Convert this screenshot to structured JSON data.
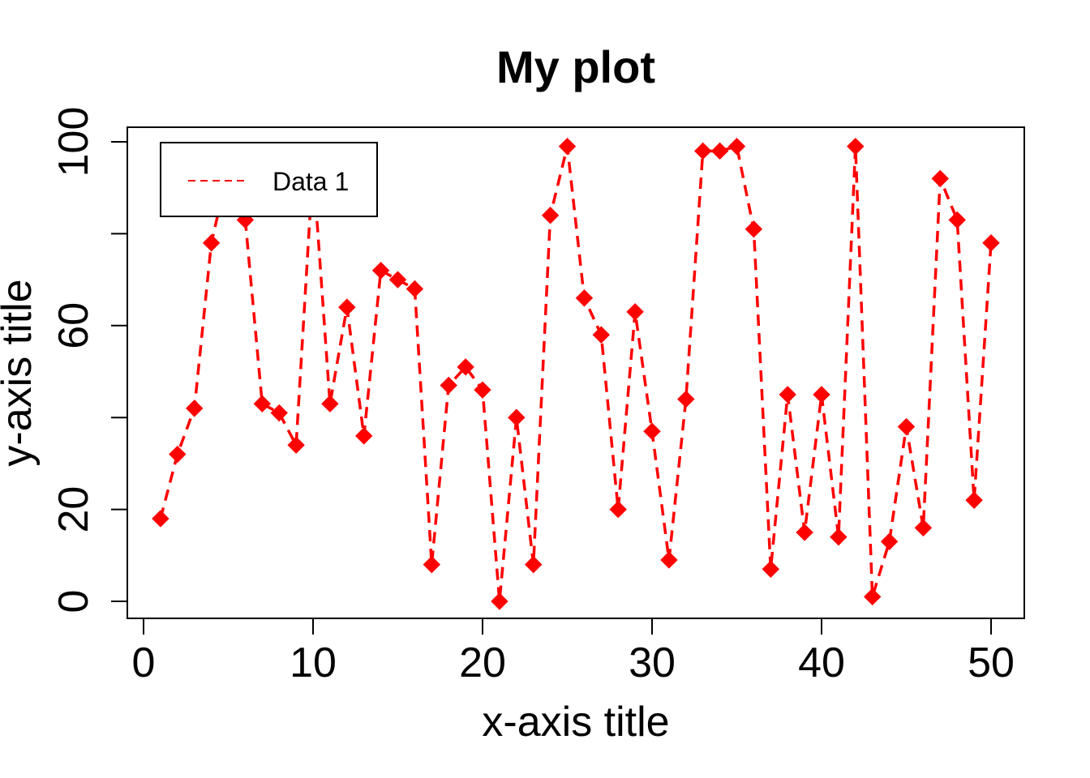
{
  "chart_data": {
    "type": "line",
    "title": "My plot",
    "xlabel": "x-axis title",
    "ylabel": "y-axis title",
    "xlim": [
      0,
      50
    ],
    "ylim": [
      0,
      100
    ],
    "x_ticks": [
      0,
      10,
      20,
      30,
      40,
      50
    ],
    "y_ticks": [
      0,
      20,
      60,
      100
    ],
    "y_minor_ticks": [
      40,
      80
    ],
    "grid": false,
    "legend_position": "top-left",
    "series": [
      {
        "name": "Data 1",
        "color": "#ff0000",
        "line_style": "dashed",
        "marker": "diamond",
        "x": [
          1,
          2,
          3,
          4,
          5,
          6,
          7,
          8,
          9,
          10,
          11,
          12,
          13,
          14,
          15,
          16,
          17,
          18,
          19,
          20,
          21,
          22,
          23,
          24,
          25,
          26,
          27,
          28,
          29,
          30,
          31,
          32,
          33,
          34,
          35,
          36,
          37,
          38,
          39,
          40,
          41,
          42,
          43,
          44,
          45,
          46,
          47,
          48,
          49,
          50
        ],
        "y": [
          18,
          32,
          42,
          78,
          94,
          83,
          43,
          41,
          34,
          95,
          43,
          64,
          36,
          72,
          70,
          68,
          8,
          47,
          51,
          46,
          0,
          40,
          8,
          84,
          99,
          66,
          58,
          20,
          63,
          37,
          9,
          44,
          98,
          98,
          99,
          81,
          7,
          45,
          15,
          45,
          14,
          99,
          1,
          13,
          38,
          16,
          92,
          83,
          22,
          78
        ]
      }
    ]
  }
}
